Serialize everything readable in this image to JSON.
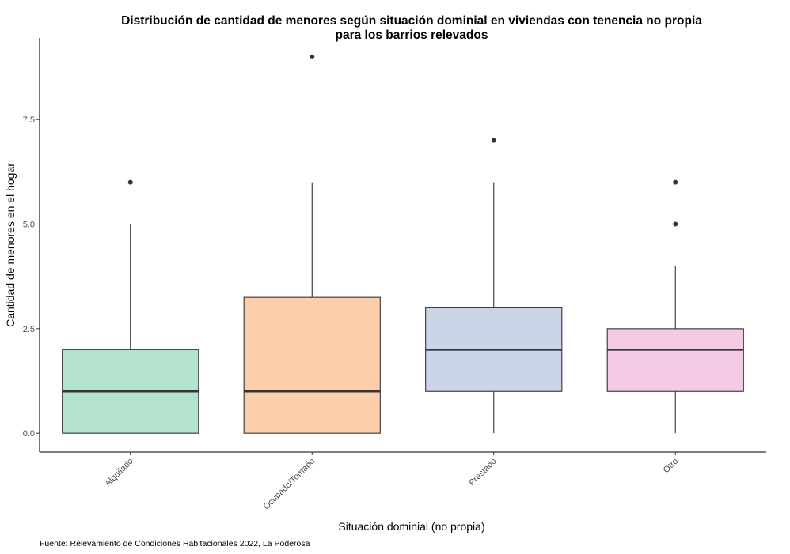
{
  "chart_data": {
    "type": "box",
    "title_lines": [
      "Distribución de cantidad de menores según situación dominial en viviendas con tenencia no propia",
      "para los barrios relevados"
    ],
    "xlabel": "Situación dominial (no propia)",
    "ylabel": "Cantidad de menores en el hogar",
    "caption": "Fuente: Relevamiento de Condiciones Habitacionales 2022, La Poderosa",
    "ylim": [
      -0.45,
      9.45
    ],
    "yticks": [
      0,
      2.5,
      5,
      7.5
    ],
    "ytick_labels": [
      "0.0",
      "2.5",
      "5.0",
      "7.5"
    ],
    "grid": false,
    "categories": [
      "Alquilado",
      "Ocupado/Tomado",
      "Prestado",
      "Otro"
    ],
    "boxes": [
      {
        "category": "Alquilado",
        "lower_whisker": 0,
        "q1": 0,
        "median": 1,
        "q3": 2,
        "upper_whisker": 5,
        "outliers": [
          6
        ],
        "color": "#b3e2cd"
      },
      {
        "category": "Ocupado/Tomado",
        "lower_whisker": 0,
        "q1": 0,
        "median": 1,
        "q3": 3.25,
        "upper_whisker": 6,
        "outliers": [
          9
        ],
        "color": "#fdcdac"
      },
      {
        "category": "Prestado",
        "lower_whisker": 0,
        "q1": 1,
        "median": 2,
        "q3": 3,
        "upper_whisker": 6,
        "outliers": [
          7
        ],
        "color": "#cbd5e8"
      },
      {
        "category": "Otro",
        "lower_whisker": 0,
        "q1": 1,
        "median": 2,
        "q3": 2.5,
        "upper_whisker": 4,
        "outliers": [
          5,
          6
        ],
        "color": "#f4cae4"
      }
    ]
  }
}
